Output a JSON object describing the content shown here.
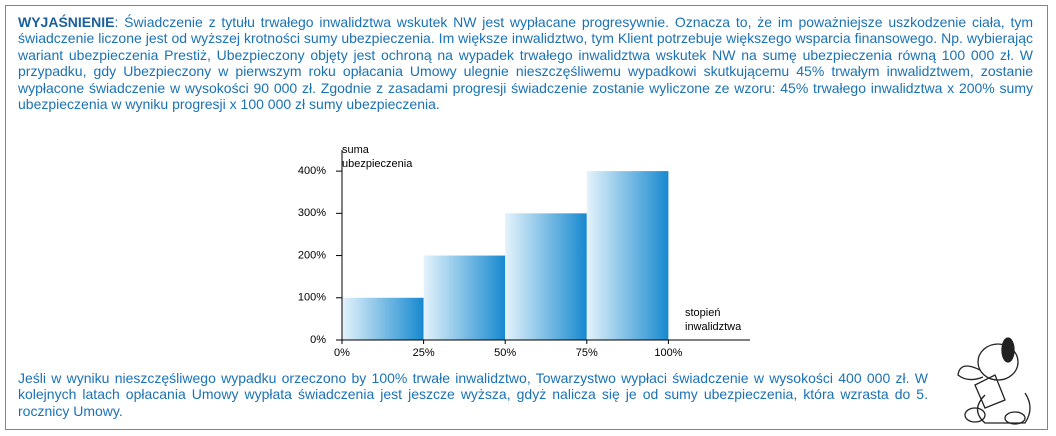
{
  "explanation": {
    "label": "WYJAŚNIENIE",
    "text": ": Świadczenie z tytułu trwałego inwalidztwa wskutek NW jest wypłacane progresywnie. Oznacza to, że im poważniejsze uszkodzenie ciała, tym świadczenie liczone jest od wyższej krotności sumy ubezpieczenia. Im większe inwalidztwo, tym Klient potrzebuje większego wsparcia finansowego. Np. wybierając wariant ubezpieczenia Prestiż, Ubezpieczony objęty jest ochroną na wypadek trwałego inwalidztwa wskutek NW na sumę ubezpieczenia równą 100 000 zł. W przypadku, gdy Ubezpieczony w pierwszym roku opłacania Umowy ulegnie nieszczęśliwemu wypadkowi skutkującemu 45% trwałym inwalidztwem, zostanie wypłacone świadczenie w wysokości 90 000 zł. Zgodnie z zasadami progresji świadczenie zostanie wyliczone ze wzoru: 45% trwałego inwalidztwa x 200% sumy ubezpieczenia w wyniku progresji x 100 000 zł sumy ubezpieczenia."
  },
  "chart_data": {
    "type": "histogram",
    "y_label": [
      "suma",
      "ubezpieczenia"
    ],
    "x_label": [
      "stopień",
      "inwalidztwa"
    ],
    "bins": [
      0,
      25,
      50,
      75,
      100
    ],
    "values": [
      100,
      200,
      300,
      400
    ],
    "xlim": [
      0,
      125
    ],
    "ylim": [
      0,
      450
    ],
    "xticks": [
      {
        "value": 0,
        "label": "0%"
      },
      {
        "value": 25,
        "label": "25%"
      },
      {
        "value": 50,
        "label": "50%"
      },
      {
        "value": 75,
        "label": "75%"
      },
      {
        "value": 100,
        "label": "100%"
      }
    ],
    "yticks": [
      {
        "value": 0,
        "label": "0%"
      },
      {
        "value": 100,
        "label": "100%"
      },
      {
        "value": 200,
        "label": "200%"
      },
      {
        "value": 300,
        "label": "300%"
      },
      {
        "value": 400,
        "label": "400%"
      }
    ],
    "colors": [
      "#e4f3fb",
      "#1789cf"
    ]
  },
  "footer_text": "Jeśli w wyniku nieszczęśliwego wypadku orzeczono by 100% trwałe inwalidztwo, Towarzystwo wypłaci świadczenie w wysokości 400 000 zł. W kolejnych latach opłacania Umowy wypłata świadczenia jest jeszcze wyższa, gdyż nalicza się je od sumy ubezpieczenia, która wzrasta do 5. rocznicy Umowy."
}
